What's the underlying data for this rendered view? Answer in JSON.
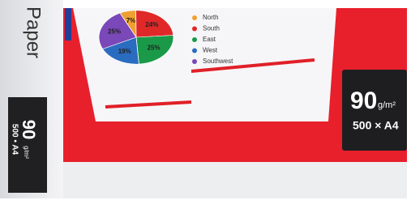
{
  "package": {
    "brand": "Paper",
    "weight": "90",
    "weight_unit": "g/m²",
    "count": "500 × A4",
    "spine_weight": "90",
    "spine_weight_unit": "g/m²",
    "spine_count": "500 • A4"
  },
  "chart_data": {
    "type": "pie",
    "categories": [
      "North",
      "South",
      "East",
      "West",
      "Southwest"
    ],
    "values": [
      7,
      24,
      25,
      19,
      25
    ],
    "value_labels": [
      "7%",
      "24%",
      "25%",
      "19%",
      "25%"
    ],
    "colors": [
      "#f0a030",
      "#e02828",
      "#1a9a48",
      "#2a6cc0",
      "#7a48b8"
    ]
  }
}
